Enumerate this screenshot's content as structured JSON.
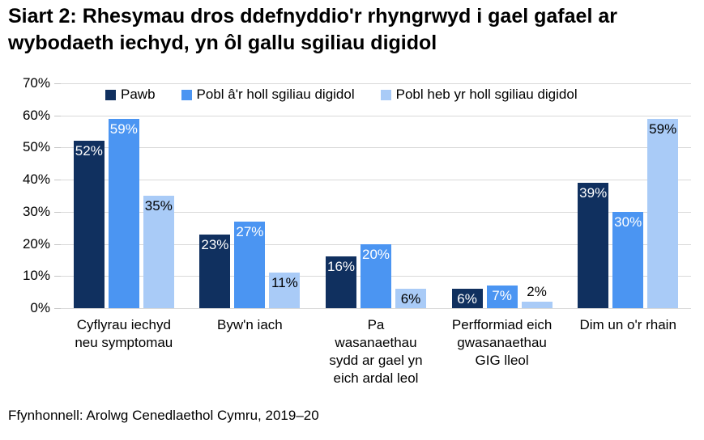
{
  "title": "Siart 2: Rhesymau dros ddefnyddio'r rhyngrwyd i gael gafael ar wybodaeth iechyd, yn ôl gallu sgiliau digidol",
  "source": "Ffynhonnell: Arolwg Cenedlaethol Cymru, 2019–20",
  "colors": {
    "gridline": "#d9d9d9",
    "text": "#000000"
  },
  "chart_data": {
    "type": "bar",
    "title": "Siart 2: Rhesymau dros ddefnyddio'r rhyngrwyd i gael gafael ar wybodaeth iechyd, yn ôl gallu sgiliau digidol",
    "categories": [
      "Cyflyrau iechyd\nneu symptomau",
      "Byw'n iach",
      "Pa\nwasanaethau\nsydd ar gael yn\neich ardal leol",
      "Perfformiad eich\ngwasanaethau\nGIG lleol",
      "Dim un o'r rhain"
    ],
    "series": [
      {
        "name": "Pawb",
        "color": "#10305f",
        "label_color": "#ffffff",
        "values": [
          52,
          23,
          16,
          6,
          39
        ]
      },
      {
        "name": "Pobl â'r holl sgiliau digidol",
        "color": "#4b95f2",
        "label_color": "#ffffff",
        "values": [
          59,
          27,
          20,
          7,
          30
        ]
      },
      {
        "name": "Pobl heb yr holl sgiliau digidol",
        "color": "#a9cbf7",
        "label_color": "#000000",
        "values": [
          35,
          11,
          6,
          2,
          59
        ]
      }
    ],
    "value_suffix": "%",
    "y_ticks": [
      "0%",
      "10%",
      "20%",
      "30%",
      "40%",
      "50%",
      "60%",
      "70%"
    ],
    "ylim": [
      0,
      70
    ],
    "grid": true,
    "legend_position": "top",
    "xlabel": "",
    "ylabel": ""
  }
}
